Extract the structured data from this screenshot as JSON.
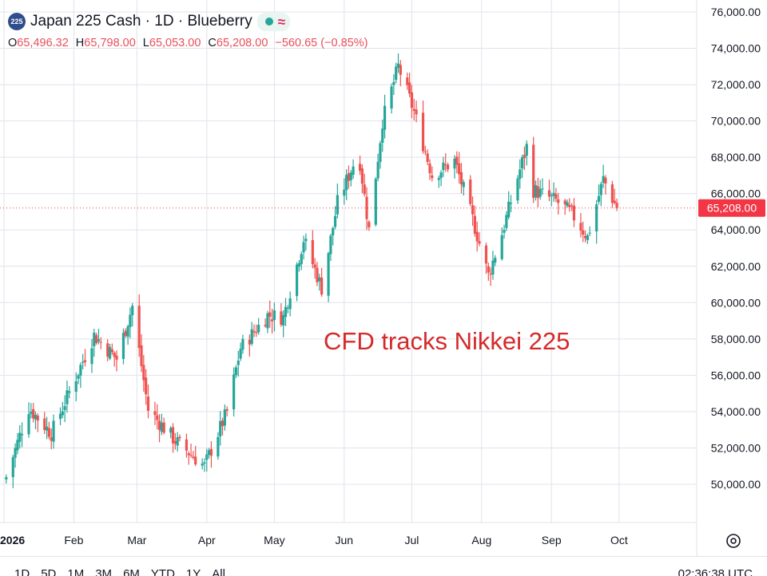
{
  "header": {
    "symbol_badge": "225",
    "title": "Japan 225 Cash · 1D · Blueberry",
    "wave_icon": "≈",
    "market_status_color": "#26a69a"
  },
  "ohlc": {
    "o_label": "O",
    "o_value": "65,496.32",
    "h_label": "H",
    "h_value": "65,798.00",
    "l_label": "L",
    "l_value": "65,053.00",
    "c_label": "C",
    "c_value": "65,208.00",
    "change": "−560.65 (−0.85%)"
  },
  "annotation": "CFD tracks Nikkei 225",
  "footer": {
    "ranges": [
      "1D",
      "5D",
      "1M",
      "3M",
      "6M",
      "YTD",
      "1Y",
      "All"
    ],
    "clock": "02:36:38 UTC"
  },
  "colors": {
    "up": "#26a69a",
    "down": "#ef5350",
    "grid": "#e0e3eb",
    "price_tag": "#f23645"
  },
  "chart_data": {
    "type": "candlestick",
    "title": "Japan 225 Cash · 1D · Blueberry",
    "ylim": [
      48500,
      76500
    ],
    "y_ticks": [
      "50,000.00",
      "52,000.00",
      "54,000.00",
      "56,000.00",
      "58,000.00",
      "60,000.00",
      "62,000.00",
      "64,000.00",
      "66,000.00",
      "68,000.00",
      "70,000.00",
      "72,000.00",
      "74,000.00",
      "76,000.00"
    ],
    "y_tick_values": [
      50000,
      52000,
      54000,
      56000,
      58000,
      60000,
      62000,
      64000,
      66000,
      68000,
      70000,
      72000,
      74000,
      76000
    ],
    "x_tick_labels": [
      "2026",
      "Feb",
      "Mar",
      "Apr",
      "May",
      "Jun",
      "Jul",
      "Aug",
      "Sep",
      "Oct"
    ],
    "last_price_label": "65,208.00",
    "last_price": 65208,
    "key_points": [
      {
        "t": "2026-01-02",
        "close": 50400
      },
      {
        "t": "2026-01-12",
        "close": 54200
      },
      {
        "t": "2026-01-22",
        "close": 52800
      },
      {
        "t": "2026-02-10",
        "close": 58200
      },
      {
        "t": "2026-02-20",
        "close": 56900
      },
      {
        "t": "2026-02-27",
        "close": 59800
      },
      {
        "t": "2026-03-06",
        "close": 54100
      },
      {
        "t": "2026-03-18",
        "close": 52400
      },
      {
        "t": "2026-03-31",
        "close": 51000
      },
      {
        "t": "2026-04-10",
        "close": 54000
      },
      {
        "t": "2026-04-16",
        "close": 57500
      },
      {
        "t": "2026-04-28",
        "close": 59300
      },
      {
        "t": "2026-05-05",
        "close": 59200
      },
      {
        "t": "2026-05-14",
        "close": 63500
      },
      {
        "t": "2026-05-22",
        "close": 60800
      },
      {
        "t": "2026-05-29",
        "close": 65500
      },
      {
        "t": "2026-06-05",
        "close": 67600
      },
      {
        "t": "2026-06-08",
        "close": 67700
      },
      {
        "t": "2026-06-12",
        "close": 64000
      },
      {
        "t": "2026-06-18",
        "close": 70000
      },
      {
        "t": "2026-06-25",
        "close": 73000
      },
      {
        "t": "2026-07-02",
        "close": 70500
      },
      {
        "t": "2026-07-10",
        "close": 67000
      },
      {
        "t": "2026-07-20",
        "close": 67800
      },
      {
        "t": "2026-07-28",
        "close": 64600
      },
      {
        "t": "2026-08-04",
        "close": 61500
      },
      {
        "t": "2026-08-10",
        "close": 63800
      },
      {
        "t": "2026-08-17",
        "close": 66900
      },
      {
        "t": "2026-08-22",
        "close": 69000
      },
      {
        "t": "2026-08-24",
        "close": 66200
      },
      {
        "t": "2026-09-03",
        "close": 65600
      },
      {
        "t": "2026-09-10",
        "close": 64900
      },
      {
        "t": "2026-09-17",
        "close": 63600
      },
      {
        "t": "2026-09-24",
        "close": 66800
      },
      {
        "t": "2026-09-30",
        "close": 65208
      }
    ]
  }
}
